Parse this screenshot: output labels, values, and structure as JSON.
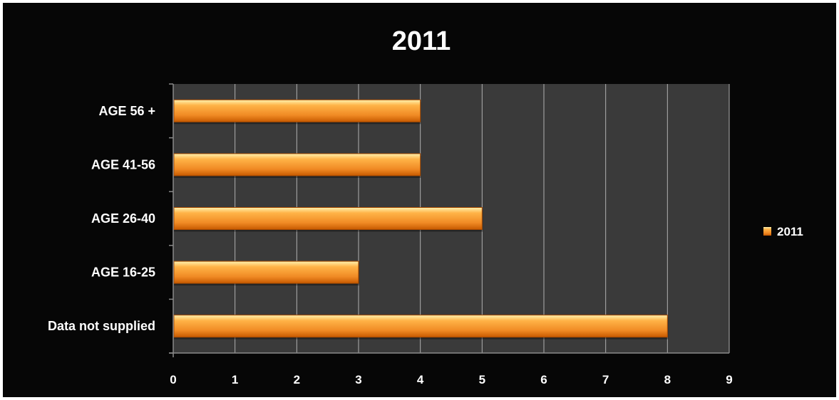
{
  "chart_data": {
    "type": "bar",
    "orientation": "horizontal",
    "title": "2011",
    "categories": [
      "AGE 56 +",
      "AGE 41-56",
      "AGE 26-40",
      "AGE 16-25",
      "Data not supplied"
    ],
    "series": [
      {
        "name": "2011",
        "values": [
          4,
          4,
          5,
          3,
          8
        ],
        "color": "#f08a24"
      }
    ],
    "xlim": [
      0,
      9
    ],
    "x_ticks": [
      "0",
      "1",
      "2",
      "3",
      "4",
      "5",
      "6",
      "7",
      "8",
      "9"
    ],
    "grid": true,
    "legend": "right",
    "colors": {
      "background": "#060606",
      "plot_area": "#3a3a3a",
      "gridline": "#b0b0b0",
      "text": "#ffffff",
      "bar_light": "#ffc266",
      "bar_dark": "#d45e00"
    }
  }
}
